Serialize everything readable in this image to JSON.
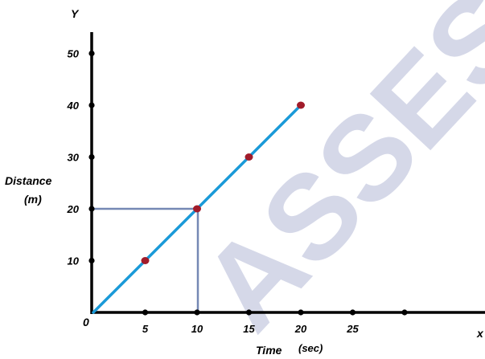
{
  "chart_data": {
    "type": "line",
    "watermark": "ASSES",
    "xlabel": "Time",
    "xlabel_unit": "(sec)",
    "ylabel": "Distance",
    "ylabel_unit": "(m)",
    "x_axis_letter": "x",
    "y_axis_letter": "Y",
    "origin_label": "0",
    "xlim": [
      0,
      35
    ],
    "ylim": [
      0,
      50
    ],
    "x_ticks": [
      {
        "value": 5,
        "label": "5"
      },
      {
        "value": 10,
        "label": "10"
      },
      {
        "value": 15,
        "label": "15"
      },
      {
        "value": 20,
        "label": "20"
      },
      {
        "value": 25,
        "label": "25"
      },
      {
        "value": 30,
        "label": ""
      }
    ],
    "y_ticks": [
      {
        "value": 10,
        "label": "10"
      },
      {
        "value": 20,
        "label": "20"
      },
      {
        "value": 30,
        "label": "30"
      },
      {
        "value": 40,
        "label": "40"
      },
      {
        "value": 50,
        "label": "50"
      }
    ],
    "series": [
      {
        "line_color": "#1a9ad8",
        "marker_color": "#a11b2a",
        "points": [
          {
            "x": 0,
            "y": 0
          },
          {
            "x": 5,
            "y": 10
          },
          {
            "x": 10,
            "y": 20
          },
          {
            "x": 15,
            "y": 30
          },
          {
            "x": 20,
            "y": 40
          }
        ]
      }
    ],
    "guide_point": {
      "x": 10,
      "y": 20,
      "color": "#7588b4"
    },
    "grid": false
  }
}
